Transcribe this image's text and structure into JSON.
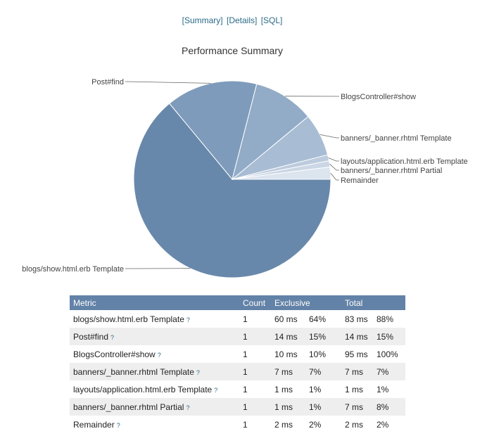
{
  "nav": {
    "summary": "[Summary]",
    "details": "[Details]",
    "sql": "[SQL]"
  },
  "chart_data": {
    "type": "pie",
    "title": "Performance Summary",
    "labels": [
      "blogs/show.html.erb Template",
      "Post#find",
      "BlogsController#show",
      "banners/_banner.rhtml Template",
      "layouts/application.html.erb Template",
      "banners/_banner.rhtml Partial",
      "Remainder"
    ],
    "values": [
      64,
      15,
      10,
      7,
      1,
      1,
      2
    ],
    "colors": [
      "#6888ab",
      "#7e9bbb",
      "#92abc7",
      "#a8bdd4",
      "#bccbdd",
      "#cbd7e5",
      "#dce4ee"
    ]
  },
  "table": {
    "headers": {
      "metric": "Metric",
      "count": "Count",
      "exclusive": "Exclusive",
      "total": "Total"
    },
    "help_glyph": "?",
    "rows": [
      {
        "metric": "blogs/show.html.erb Template",
        "count": "1",
        "ex_ms": "60 ms",
        "ex_pct": "64%",
        "to_ms": "83 ms",
        "to_pct": "88%"
      },
      {
        "metric": "Post#find",
        "count": "1",
        "ex_ms": "14 ms",
        "ex_pct": "15%",
        "to_ms": "14 ms",
        "to_pct": "15%"
      },
      {
        "metric": "BlogsController#show",
        "count": "1",
        "ex_ms": "10 ms",
        "ex_pct": "10%",
        "to_ms": "95 ms",
        "to_pct": "100%"
      },
      {
        "metric": "banners/_banner.rhtml Template",
        "count": "1",
        "ex_ms": "7 ms",
        "ex_pct": "7%",
        "to_ms": "7 ms",
        "to_pct": "7%"
      },
      {
        "metric": "layouts/application.html.erb Template",
        "count": "1",
        "ex_ms": "1 ms",
        "ex_pct": "1%",
        "to_ms": "1 ms",
        "to_pct": "1%"
      },
      {
        "metric": "banners/_banner.rhtml Partial",
        "count": "1",
        "ex_ms": "1 ms",
        "ex_pct": "1%",
        "to_ms": "7 ms",
        "to_pct": "8%"
      },
      {
        "metric": "Remainder",
        "count": "1",
        "ex_ms": "2 ms",
        "ex_pct": "2%",
        "to_ms": "2 ms",
        "to_pct": "2%"
      }
    ]
  }
}
